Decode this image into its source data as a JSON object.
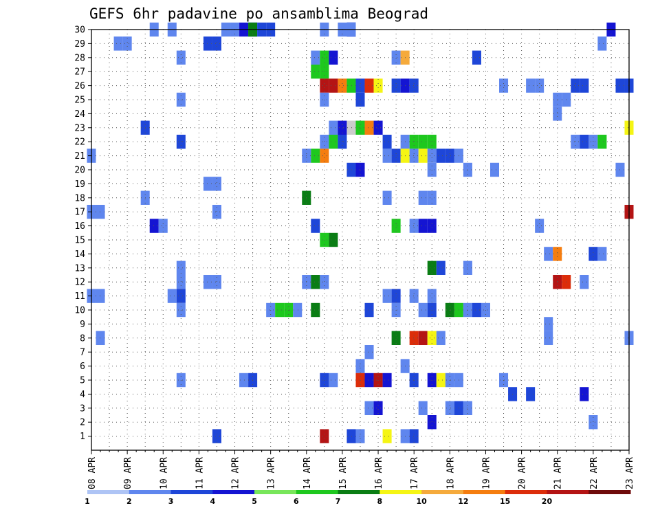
{
  "chart_data": {
    "type": "heatmap",
    "title": "GEFS 6hr padavine po ansamblima Beograd",
    "xlabel": "",
    "ylabel": "",
    "x_ticks": [
      "08 APR",
      "09 APR",
      "10 APR",
      "11 APR",
      "12 APR",
      "13 APR",
      "14 APR",
      "15 APR",
      "16 APR",
      "17 APR",
      "18 APR",
      "19 APR",
      "20 APR",
      "21 APR",
      "22 APR",
      "23 APR"
    ],
    "y_ticks": [
      "1",
      "2",
      "3",
      "4",
      "5",
      "6",
      "7",
      "8",
      "9",
      "10",
      "11",
      "12",
      "13",
      "14",
      "15",
      "16",
      "17",
      "18",
      "19",
      "20",
      "21",
      "22",
      "23",
      "24",
      "25",
      "26",
      "27",
      "28",
      "29",
      "30"
    ],
    "x_range": [
      0,
      60
    ],
    "y_range": [
      0,
      30
    ],
    "grid": true,
    "color_scale": {
      "labels": [
        "1",
        "2",
        "3",
        "4",
        "5",
        "6",
        "7",
        "8",
        "10",
        "12",
        "15",
        "20"
      ],
      "colors": [
        "#aec4f5",
        "#5f86ee",
        "#1e46d8",
        "#1414d2",
        "#78e65a",
        "#1ec81e",
        "#0a7d14",
        "#f5f514",
        "#f5aa3c",
        "#f57d0f",
        "#dc2d0a",
        "#b41414",
        "#6e0a0a"
      ]
    },
    "cells": [
      [
        7,
        30,
        1
      ],
      [
        9,
        30,
        1
      ],
      [
        15,
        30,
        1
      ],
      [
        16,
        30,
        1
      ],
      [
        17,
        30,
        3
      ],
      [
        18,
        30,
        1
      ],
      [
        18,
        30,
        1
      ],
      [
        18,
        30,
        6
      ],
      [
        19,
        30,
        2
      ],
      [
        20,
        30,
        2
      ],
      [
        29,
        30,
        3
      ],
      [
        26,
        30,
        1
      ],
      [
        28,
        30,
        1
      ],
      [
        29,
        30,
        2
      ],
      [
        29,
        30,
        1
      ],
      [
        58,
        30,
        3
      ],
      [
        3,
        29,
        1
      ],
      [
        4,
        29,
        1
      ],
      [
        13,
        29,
        2
      ],
      [
        14,
        29,
        2
      ],
      [
        57,
        29,
        1
      ],
      [
        10,
        28,
        1
      ],
      [
        25,
        28,
        1
      ],
      [
        26,
        28,
        5
      ],
      [
        27,
        28,
        3
      ],
      [
        34,
        28,
        1
      ],
      [
        35,
        28,
        8
      ],
      [
        43,
        28,
        2
      ],
      [
        25,
        27,
        5
      ],
      [
        26,
        27,
        5
      ],
      [
        26,
        26,
        11
      ],
      [
        27,
        26,
        11
      ],
      [
        28,
        26,
        9
      ],
      [
        29,
        26,
        5
      ],
      [
        30,
        26,
        2
      ],
      [
        31,
        26,
        10
      ],
      [
        32,
        26,
        7
      ],
      [
        34,
        26,
        2
      ],
      [
        35,
        26,
        3
      ],
      [
        36,
        26,
        2
      ],
      [
        46,
        26,
        1
      ],
      [
        49,
        26,
        1
      ],
      [
        50,
        26,
        1
      ],
      [
        54,
        26,
        2
      ],
      [
        55,
        26,
        2
      ],
      [
        59,
        26,
        2
      ],
      [
        60,
        26,
        2
      ],
      [
        10,
        25,
        1
      ],
      [
        26,
        25,
        1
      ],
      [
        30,
        25,
        2
      ],
      [
        52,
        25,
        1
      ],
      [
        53,
        25,
        1
      ],
      [
        52,
        24,
        1
      ],
      [
        6,
        23,
        2
      ],
      [
        27,
        23,
        1
      ],
      [
        28,
        23,
        3
      ],
      [
        29,
        23,
        13
      ],
      [
        30,
        23,
        5
      ],
      [
        31,
        23,
        9
      ],
      [
        32,
        23,
        3
      ],
      [
        60,
        23,
        7
      ],
      [
        10,
        22,
        2
      ],
      [
        26,
        22,
        1
      ],
      [
        27,
        22,
        5
      ],
      [
        28,
        22,
        2
      ],
      [
        33,
        22,
        2
      ],
      [
        35,
        22,
        1
      ],
      [
        36,
        22,
        5
      ],
      [
        37,
        22,
        5
      ],
      [
        38,
        22,
        5
      ],
      [
        54,
        22,
        1
      ],
      [
        55,
        22,
        2
      ],
      [
        56,
        22,
        1
      ],
      [
        57,
        22,
        5
      ],
      [
        0,
        21,
        1
      ],
      [
        24,
        21,
        1
      ],
      [
        25,
        21,
        5
      ],
      [
        26,
        21,
        9
      ],
      [
        33,
        21,
        1
      ],
      [
        34,
        21,
        2
      ],
      [
        35,
        21,
        7
      ],
      [
        36,
        21,
        1
      ],
      [
        37,
        21,
        7
      ],
      [
        38,
        21,
        1
      ],
      [
        39,
        21,
        2
      ],
      [
        40,
        21,
        2
      ],
      [
        41,
        21,
        1
      ],
      [
        29,
        20,
        2
      ],
      [
        30,
        20,
        3
      ],
      [
        38,
        20,
        1
      ],
      [
        42,
        20,
        1
      ],
      [
        45,
        20,
        1
      ],
      [
        59,
        20,
        1
      ],
      [
        13,
        19,
        1
      ],
      [
        14,
        19,
        1
      ],
      [
        6,
        18,
        1
      ],
      [
        24,
        18,
        6
      ],
      [
        33,
        18,
        1
      ],
      [
        37,
        18,
        1
      ],
      [
        38,
        18,
        1
      ],
      [
        0,
        17,
        1
      ],
      [
        1,
        17,
        1
      ],
      [
        14,
        17,
        1
      ],
      [
        60,
        17,
        11
      ],
      [
        7,
        16,
        3
      ],
      [
        8,
        16,
        1
      ],
      [
        25,
        16,
        2
      ],
      [
        34,
        16,
        5
      ],
      [
        36,
        16,
        1
      ],
      [
        37,
        16,
        3
      ],
      [
        38,
        16,
        3
      ],
      [
        50,
        16,
        1
      ],
      [
        26,
        15,
        5
      ],
      [
        27,
        15,
        6
      ],
      [
        51,
        14,
        1
      ],
      [
        52,
        14,
        9
      ],
      [
        56,
        14,
        2
      ],
      [
        57,
        14,
        1
      ],
      [
        10,
        13,
        1
      ],
      [
        38,
        13,
        6
      ],
      [
        39,
        13,
        2
      ],
      [
        42,
        13,
        1
      ],
      [
        10,
        12,
        1
      ],
      [
        13,
        12,
        1
      ],
      [
        14,
        12,
        1
      ],
      [
        24,
        12,
        1
      ],
      [
        25,
        12,
        6
      ],
      [
        26,
        12,
        1
      ],
      [
        52,
        12,
        11
      ],
      [
        53,
        12,
        10
      ],
      [
        55,
        12,
        1
      ],
      [
        0,
        11,
        1
      ],
      [
        1,
        11,
        1
      ],
      [
        9,
        11,
        1
      ],
      [
        10,
        11,
        2
      ],
      [
        33,
        11,
        1
      ],
      [
        34,
        11,
        2
      ],
      [
        36,
        11,
        1
      ],
      [
        38,
        11,
        1
      ],
      [
        10,
        10,
        1
      ],
      [
        20,
        10,
        1
      ],
      [
        21,
        10,
        5
      ],
      [
        22,
        10,
        5
      ],
      [
        23,
        10,
        1
      ],
      [
        25,
        10,
        6
      ],
      [
        31,
        10,
        2
      ],
      [
        34,
        10,
        1
      ],
      [
        37,
        10,
        1
      ],
      [
        38,
        10,
        2
      ],
      [
        40,
        10,
        6
      ],
      [
        41,
        10,
        5
      ],
      [
        42,
        10,
        1
      ],
      [
        43,
        10,
        2
      ],
      [
        44,
        10,
        1
      ],
      [
        51,
        9,
        1
      ],
      [
        1,
        8,
        1
      ],
      [
        34,
        8,
        6
      ],
      [
        36,
        8,
        10
      ],
      [
        37,
        8,
        11
      ],
      [
        38,
        8,
        7
      ],
      [
        39,
        8,
        1
      ],
      [
        51,
        8,
        1
      ],
      [
        60,
        8,
        1
      ],
      [
        31,
        7,
        1
      ],
      [
        30,
        6,
        1
      ],
      [
        35,
        6,
        1
      ],
      [
        10,
        5,
        1
      ],
      [
        17,
        5,
        1
      ],
      [
        18,
        5,
        2
      ],
      [
        26,
        5,
        2
      ],
      [
        27,
        5,
        1
      ],
      [
        30,
        5,
        10
      ],
      [
        31,
        5,
        3
      ],
      [
        32,
        5,
        11
      ],
      [
        33,
        5,
        3
      ],
      [
        36,
        5,
        2
      ],
      [
        38,
        5,
        3
      ],
      [
        39,
        5,
        7
      ],
      [
        40,
        5,
        1
      ],
      [
        41,
        5,
        1
      ],
      [
        46,
        5,
        1
      ],
      [
        47,
        4,
        2
      ],
      [
        49,
        4,
        2
      ],
      [
        55,
        4,
        3
      ],
      [
        31,
        3,
        1
      ],
      [
        32,
        3,
        3
      ],
      [
        37,
        3,
        1
      ],
      [
        40,
        3,
        1
      ],
      [
        41,
        3,
        2
      ],
      [
        42,
        3,
        1
      ],
      [
        38,
        2,
        3
      ],
      [
        56,
        2,
        1
      ],
      [
        14,
        1,
        2
      ],
      [
        26,
        1,
        11
      ],
      [
        29,
        1,
        2
      ],
      [
        30,
        1,
        1
      ],
      [
        33,
        1,
        7
      ],
      [
        35,
        1,
        1
      ],
      [
        36,
        1,
        2
      ]
    ]
  }
}
